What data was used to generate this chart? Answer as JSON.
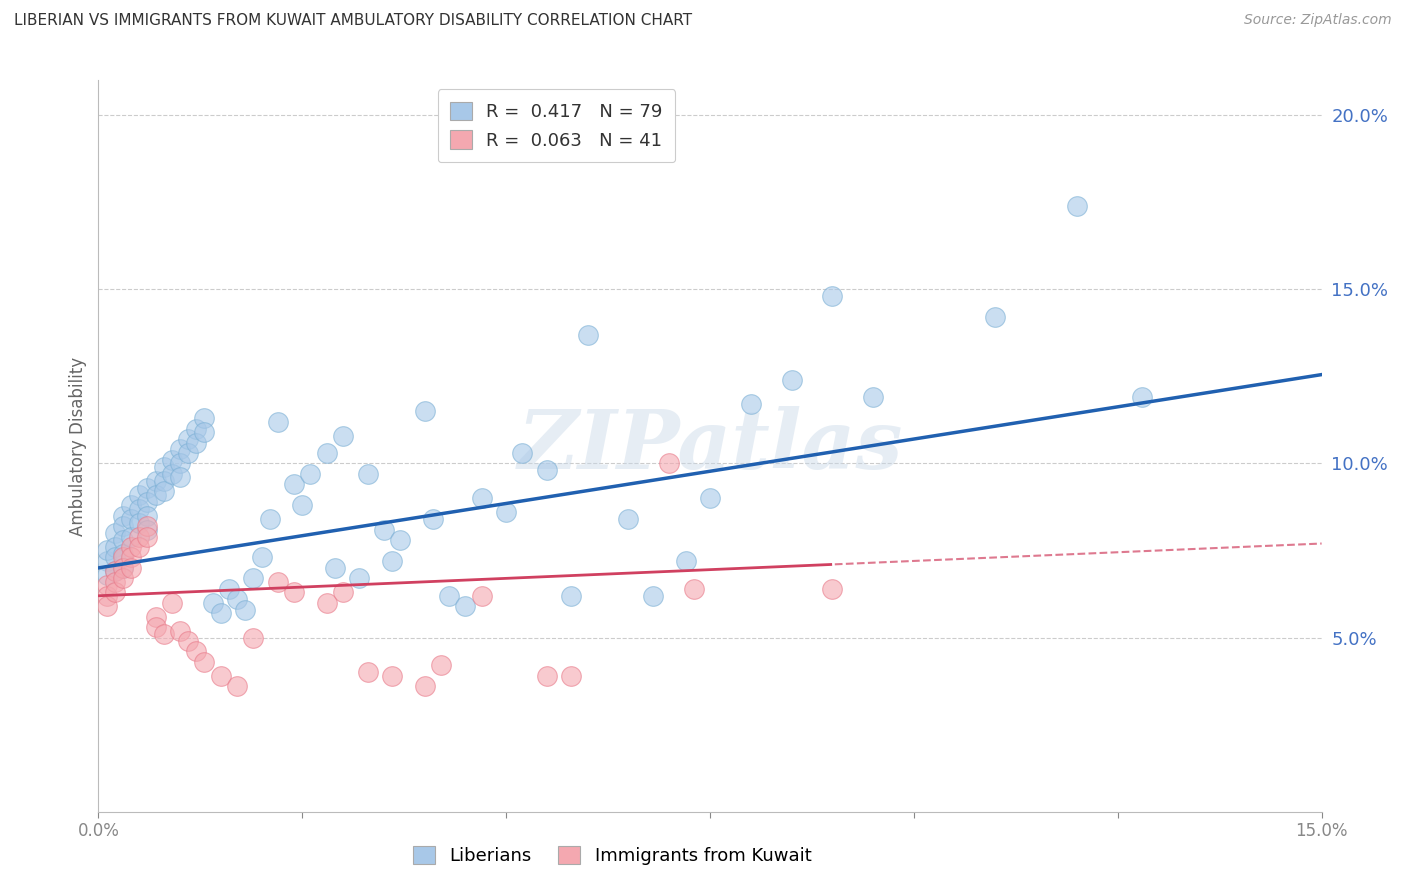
{
  "title": "LIBERIAN VS IMMIGRANTS FROM KUWAIT AMBULATORY DISABILITY CORRELATION CHART",
  "source": "Source: ZipAtlas.com",
  "ylabel": "Ambulatory Disability",
  "xlim": [
    0.0,
    0.15
  ],
  "ylim": [
    0.0,
    0.21
  ],
  "xticks": [
    0.0,
    0.025,
    0.05,
    0.075,
    0.1,
    0.125,
    0.15
  ],
  "xticklabels": [
    "0.0%",
    "",
    "",
    "",
    "",
    "",
    "15.0%"
  ],
  "yticks_right": [
    0.05,
    0.1,
    0.15,
    0.2
  ],
  "ytick_labels_right": [
    "5.0%",
    "10.0%",
    "15.0%",
    "20.0%"
  ],
  "liberian_R": 0.417,
  "liberian_N": 79,
  "kuwait_R": 0.063,
  "kuwait_N": 41,
  "liberian_color": "#a8c8e8",
  "liberian_edge_color": "#7aafd4",
  "kuwait_color": "#f4a8b0",
  "kuwait_edge_color": "#e87888",
  "liberian_line_color": "#2060b0",
  "kuwait_line_color": "#d04060",
  "background_color": "#ffffff",
  "grid_color": "#cccccc",
  "watermark": "ZIPatlas",
  "liberian_line_intercept": 0.07,
  "liberian_line_slope": 0.37,
  "kuwait_line_intercept": 0.062,
  "kuwait_line_slope": 0.1,
  "liberian_x": [
    0.001,
    0.001,
    0.001,
    0.002,
    0.002,
    0.002,
    0.002,
    0.003,
    0.003,
    0.003,
    0.003,
    0.003,
    0.004,
    0.004,
    0.004,
    0.005,
    0.005,
    0.005,
    0.006,
    0.006,
    0.006,
    0.006,
    0.007,
    0.007,
    0.008,
    0.008,
    0.008,
    0.009,
    0.009,
    0.01,
    0.01,
    0.01,
    0.011,
    0.011,
    0.012,
    0.012,
    0.013,
    0.013,
    0.014,
    0.015,
    0.016,
    0.017,
    0.018,
    0.019,
    0.02,
    0.021,
    0.022,
    0.024,
    0.025,
    0.026,
    0.028,
    0.029,
    0.03,
    0.032,
    0.033,
    0.035,
    0.036,
    0.037,
    0.04,
    0.041,
    0.043,
    0.045,
    0.047,
    0.05,
    0.052,
    0.055,
    0.058,
    0.06,
    0.065,
    0.068,
    0.072,
    0.075,
    0.08,
    0.085,
    0.09,
    0.095,
    0.11,
    0.12,
    0.128
  ],
  "liberian_y": [
    0.072,
    0.068,
    0.075,
    0.08,
    0.076,
    0.073,
    0.069,
    0.085,
    0.082,
    0.078,
    0.074,
    0.07,
    0.088,
    0.084,
    0.079,
    0.091,
    0.087,
    0.083,
    0.093,
    0.089,
    0.085,
    0.081,
    0.095,
    0.091,
    0.099,
    0.095,
    0.092,
    0.101,
    0.097,
    0.104,
    0.1,
    0.096,
    0.107,
    0.103,
    0.11,
    0.106,
    0.113,
    0.109,
    0.06,
    0.057,
    0.064,
    0.061,
    0.058,
    0.067,
    0.073,
    0.084,
    0.112,
    0.094,
    0.088,
    0.097,
    0.103,
    0.07,
    0.108,
    0.067,
    0.097,
    0.081,
    0.072,
    0.078,
    0.115,
    0.084,
    0.062,
    0.059,
    0.09,
    0.086,
    0.103,
    0.098,
    0.062,
    0.137,
    0.084,
    0.062,
    0.072,
    0.09,
    0.117,
    0.124,
    0.148,
    0.119,
    0.142,
    0.174,
    0.119
  ],
  "kuwait_x": [
    0.001,
    0.001,
    0.001,
    0.002,
    0.002,
    0.002,
    0.003,
    0.003,
    0.003,
    0.004,
    0.004,
    0.004,
    0.005,
    0.005,
    0.006,
    0.006,
    0.007,
    0.007,
    0.008,
    0.009,
    0.01,
    0.011,
    0.012,
    0.013,
    0.015,
    0.017,
    0.019,
    0.022,
    0.024,
    0.028,
    0.03,
    0.033,
    0.036,
    0.04,
    0.042,
    0.047,
    0.055,
    0.058,
    0.07,
    0.073,
    0.09
  ],
  "kuwait_y": [
    0.065,
    0.062,
    0.059,
    0.069,
    0.066,
    0.063,
    0.073,
    0.07,
    0.067,
    0.076,
    0.073,
    0.07,
    0.079,
    0.076,
    0.082,
    0.079,
    0.056,
    0.053,
    0.051,
    0.06,
    0.052,
    0.049,
    0.046,
    0.043,
    0.039,
    0.036,
    0.05,
    0.066,
    0.063,
    0.06,
    0.063,
    0.04,
    0.039,
    0.036,
    0.042,
    0.062,
    0.039,
    0.039,
    0.1,
    0.064,
    0.064
  ]
}
